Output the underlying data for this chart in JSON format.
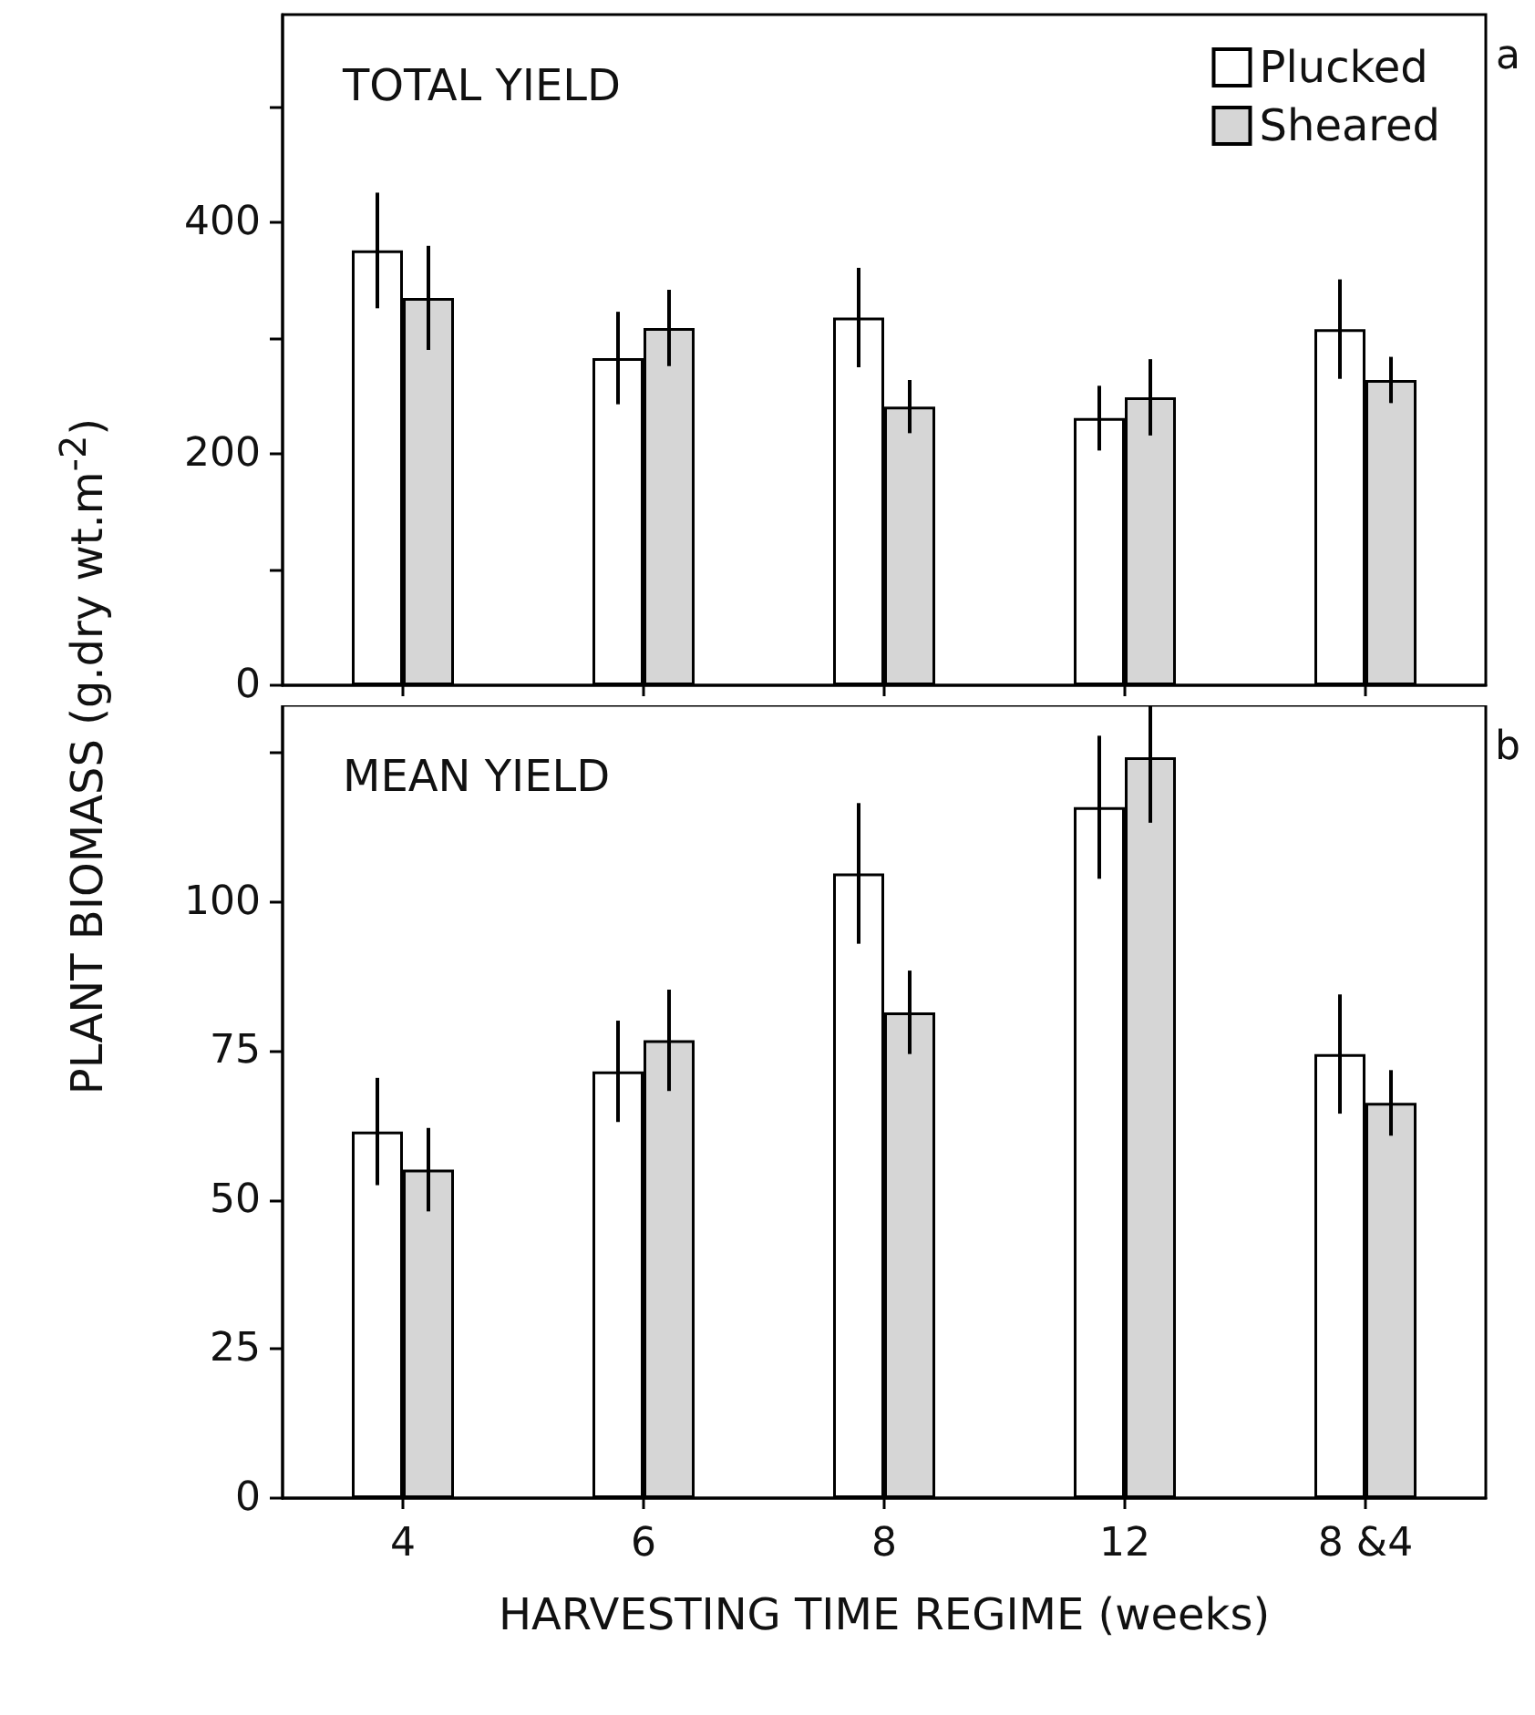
{
  "chart_data": [
    {
      "type": "bar",
      "title": "TOTAL YIELD",
      "ylabel": "PLANT BIOMASS (g.dry wt.m$^{-2}$)",
      "annotations": [
        "a"
      ],
      "categories": [
        null,
        null,
        null,
        null,
        null
      ],
      "series": [
        {
          "name": "Plucked",
          "color": "#ffffff",
          "values": [
            376,
            283,
            318,
            231,
            308
          ],
          "errors": [
            50,
            40,
            43,
            28,
            43
          ]
        },
        {
          "name": "Sheared",
          "color": "#d6d6d6",
          "values": [
            335,
            309,
            241,
            249,
            264
          ],
          "errors": [
            45,
            33,
            23,
            33,
            20
          ]
        }
      ],
      "ylim": [
        0,
        580
      ],
      "yticks": [
        0,
        {
          "value": 100,
          "label": null
        },
        200,
        {
          "value": 300,
          "label": null
        },
        400,
        {
          "value": 500,
          "label": null
        }
      ],
      "legend": "top right",
      "grid": false
    },
    {
      "type": "bar",
      "title": "MEAN YIELD",
      "xlabel": "HARVESTING TIME REGIME (weeks)",
      "annotations": [
        "b"
      ],
      "categories": [
        "4",
        "6",
        "8",
        "12",
        "8 &4"
      ],
      "series": [
        {
          "color": "#ffffff",
          "values": [
            61.5,
            71.6,
            104.8,
            115.9,
            74.5
          ],
          "errors": [
            9,
            8.5,
            11.8,
            12,
            10
          ]
        },
        {
          "color": "#d6d6d6",
          "values": [
            55.1,
            76.8,
            81.5,
            124.3,
            66.3
          ],
          "errors": [
            7,
            8.5,
            7,
            11,
            5.5
          ]
        }
      ],
      "ylim": [
        0,
        133
      ],
      "yticks": [
        0,
        25,
        50,
        75,
        100,
        {
          "value": 125,
          "label": null
        }
      ],
      "legend": false,
      "grid": false
    }
  ]
}
